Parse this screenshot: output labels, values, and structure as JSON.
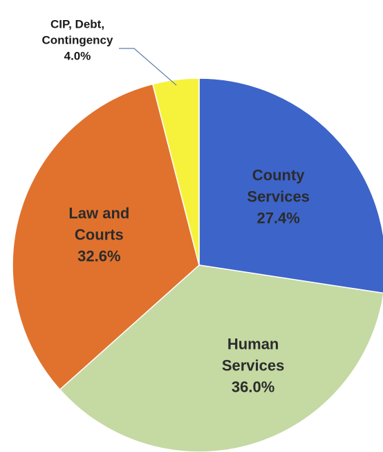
{
  "chart_data": {
    "type": "pie",
    "categories": [
      "County Services",
      "Human Services",
      "Law and Courts",
      "CIP, Debt, Contingency"
    ],
    "values": [
      27.4,
      36.0,
      32.6,
      4.0
    ],
    "value_labels": [
      "27.4%",
      "36.0%",
      "32.6%",
      "4.0%"
    ],
    "colors": [
      "#3d64c9",
      "#c5d9a3",
      "#e0722e",
      "#f6f23c"
    ]
  }
}
